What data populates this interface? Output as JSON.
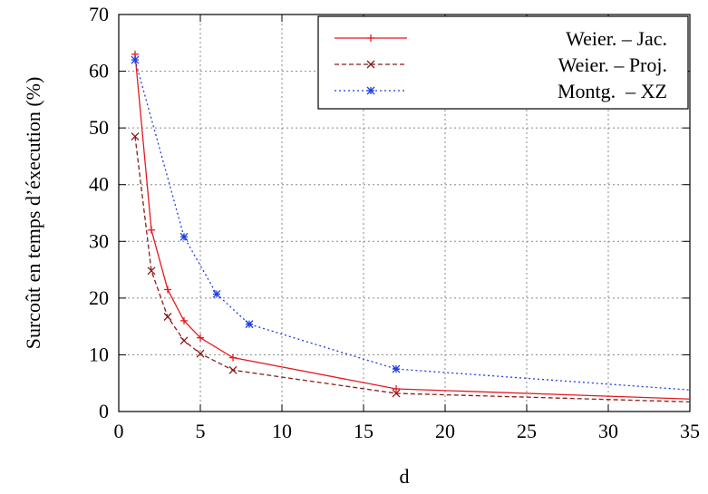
{
  "chart_data": {
    "type": "line",
    "title": "",
    "xlabel": "d",
    "ylabel": "Surcoût en temps d’éxecution (%)",
    "xlim": [
      0,
      35
    ],
    "ylim": [
      0,
      70
    ],
    "xticks": [
      0,
      5,
      10,
      15,
      20,
      25,
      30,
      35
    ],
    "yticks": [
      0,
      10,
      20,
      30,
      40,
      50,
      60,
      70
    ],
    "grid": true,
    "legend_position": "top-right",
    "series": [
      {
        "name": "Weier. – Jac.",
        "color": "#e41a1c",
        "line_style": "solid",
        "marker": "plus",
        "points": [
          [
            1,
            63
          ],
          [
            2,
            32
          ],
          [
            3,
            21.5
          ],
          [
            4,
            16
          ],
          [
            5,
            13
          ],
          [
            7,
            9.5
          ],
          [
            17,
            4
          ],
          [
            35,
            2.2
          ]
        ]
      },
      {
        "name": "Weier. – Proj.",
        "color": "#8b1a1a",
        "line_style": "dashed",
        "marker": "cross",
        "points": [
          [
            1,
            48.5
          ],
          [
            2,
            24.8
          ],
          [
            3,
            16.7
          ],
          [
            4,
            12.5
          ],
          [
            5,
            10.2
          ],
          [
            7,
            7.3
          ],
          [
            17,
            3.2
          ],
          [
            35,
            1.7
          ]
        ]
      },
      {
        "name": "Montg.  – XZ",
        "color": "#1f3fdf",
        "line_style": "dotted",
        "marker": "star",
        "points": [
          [
            1,
            62
          ],
          [
            4,
            30.8
          ],
          [
            6,
            20.7
          ],
          [
            8,
            15.4
          ],
          [
            17,
            7.5
          ],
          [
            35,
            3.8
          ]
        ]
      }
    ]
  }
}
